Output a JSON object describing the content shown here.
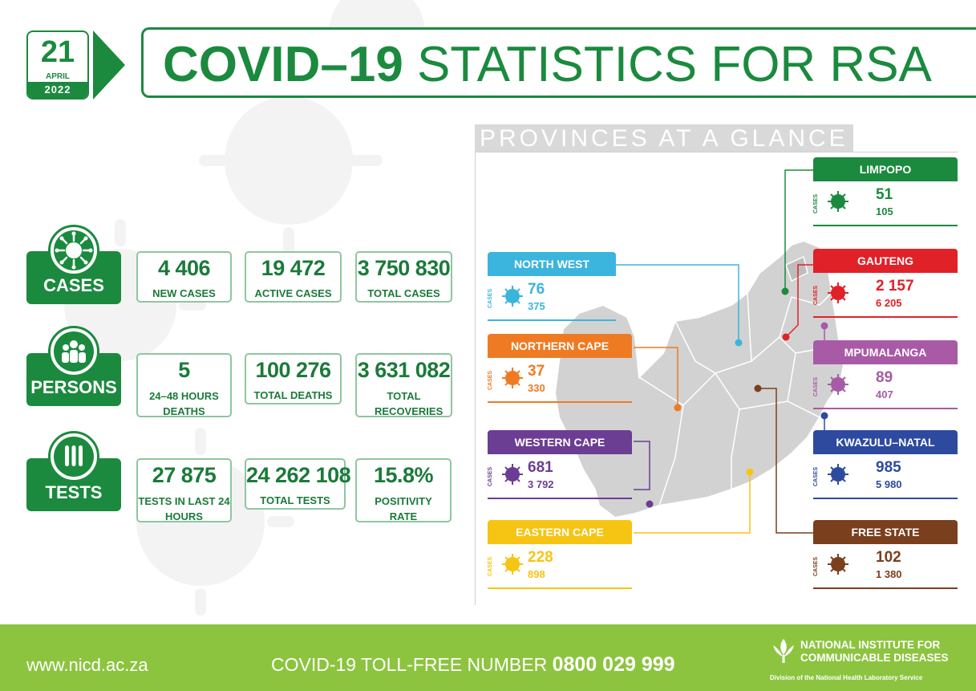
{
  "date": {
    "day": "21",
    "month": "APRIL",
    "year": "2022"
  },
  "title": {
    "bold": "COVID–19",
    "rest": "STATISTICS FOR RSA"
  },
  "cases": {
    "label": "CASES",
    "boxes": [
      {
        "value": "4 406",
        "caption": "NEW CASES"
      },
      {
        "value": "19 472",
        "caption": "ACTIVE CASES"
      },
      {
        "value": "3 750 830",
        "caption": "TOTAL CASES"
      }
    ]
  },
  "persons": {
    "label": "PERSONS",
    "boxes": [
      {
        "value": "5",
        "caption": "24–48 HOURS DEATHS"
      },
      {
        "value": "100 276",
        "caption": "TOTAL DEATHS"
      },
      {
        "value": "3 631 082",
        "caption": "TOTAL RECOVERIES"
      }
    ]
  },
  "tests": {
    "label": "TESTS",
    "boxes": [
      {
        "value": "27 875",
        "caption": "TESTS IN LAST 24 HOURS"
      },
      {
        "value": "24 262 108",
        "caption": "TOTAL TESTS"
      },
      {
        "value": "15.8%",
        "caption": "POSITIVITY RATE"
      }
    ]
  },
  "provinces": {
    "heading": "PROVINCES AT A GLANCE",
    "cases_label": "CASES",
    "items": [
      {
        "name": "LIMPOPO",
        "new": "51",
        "total": "105",
        "color": "#1b8a3e"
      },
      {
        "name": "NORTH WEST",
        "new": "76",
        "total": "375",
        "color": "#3bb5dd"
      },
      {
        "name": "GAUTENG",
        "new": "2 157",
        "total": "6 205",
        "color": "#e02128"
      },
      {
        "name": "NORTHERN CAPE",
        "new": "37",
        "total": "330",
        "color": "#ee7b23"
      },
      {
        "name": "MPUMALANGA",
        "new": "89",
        "total": "407",
        "color": "#a95aa6"
      },
      {
        "name": "WESTERN CAPE",
        "new": "681",
        "total": "3 792",
        "color": "#6b3d93"
      },
      {
        "name": "KWAZULU–NATAL",
        "new": "985",
        "total": "5 980",
        "color": "#2d4a9e"
      },
      {
        "name": "EASTERN CAPE",
        "new": "228",
        "total": "898",
        "color": "#f6c413"
      },
      {
        "name": "FREE STATE",
        "new": "102",
        "total": "1 380",
        "color": "#7a3f1d"
      }
    ]
  },
  "footer": {
    "url": "www.nicd.ac.za",
    "toll_label": "COVID-19 TOLL-FREE NUMBER",
    "toll_number": "0800 029 999",
    "org_line1": "NATIONAL INSTITUTE FOR",
    "org_line2": "COMMUNICABLE DISEASES",
    "division": "Division of the National Health Laboratory Service"
  }
}
